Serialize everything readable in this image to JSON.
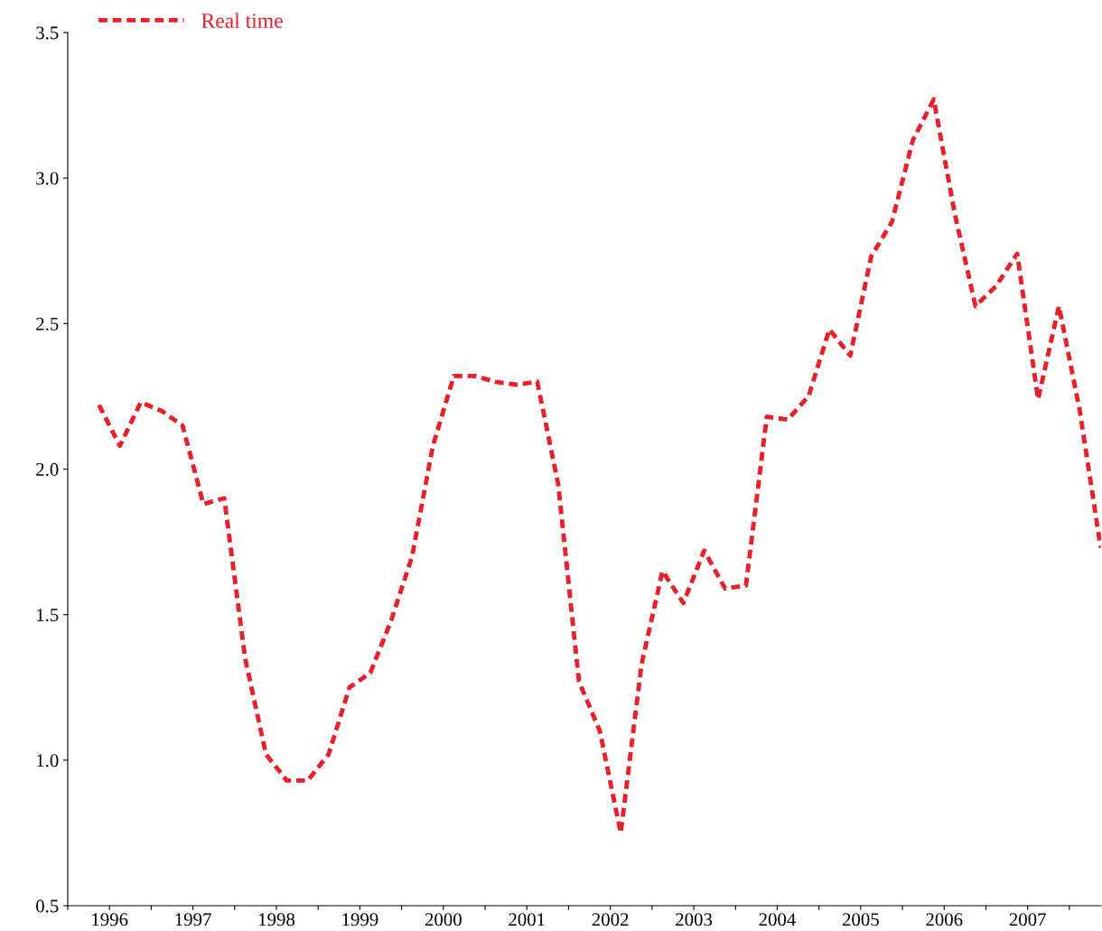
{
  "chart_data": {
    "type": "line",
    "legend": "top left",
    "line_style": "dashed",
    "marker": "none",
    "grid": false,
    "x": [
      1996.375,
      1996.625,
      1996.875,
      1997.125,
      1997.375,
      1997.625,
      1997.875,
      1998.125,
      1998.375,
      1998.625,
      1998.875,
      1999.125,
      1999.375,
      1999.625,
      1999.875,
      2000.125,
      2000.375,
      2000.625,
      2000.875,
      2001.125,
      2001.375,
      2001.625,
      2001.875,
      2002.125,
      2002.375,
      2002.625,
      2002.875,
      2003.125,
      2003.375,
      2003.625,
      2003.875,
      2004.125,
      2004.375,
      2004.625,
      2004.875,
      2005.125,
      2005.375,
      2005.625,
      2005.875,
      2006.125,
      2006.375,
      2006.625,
      2006.875,
      2007.125,
      2007.375,
      2007.625,
      2007.875,
      2008.125,
      2008.375
    ],
    "series": [
      {
        "name": "Real time",
        "color": "#e8202a",
        "values": [
          2.22,
          2.08,
          2.23,
          2.2,
          2.15,
          1.88,
          1.9,
          1.35,
          1.02,
          0.93,
          0.93,
          1.02,
          1.25,
          1.3,
          1.48,
          1.7,
          2.08,
          2.32,
          2.32,
          2.3,
          2.29,
          2.3,
          1.95,
          1.27,
          1.1,
          0.75,
          1.33,
          1.65,
          1.54,
          1.72,
          1.59,
          1.6,
          2.18,
          2.17,
          2.25,
          2.48,
          2.39,
          2.73,
          2.85,
          3.13,
          3.27,
          2.88,
          2.56,
          2.63,
          2.74,
          2.24,
          2.56,
          2.2,
          1.73
        ]
      }
    ],
    "xlim": [
      1996,
      2008.38
    ],
    "xticks": [
      {
        "value": 1996,
        "label": null
      },
      {
        "value": 1996.5,
        "label": "1996"
      },
      {
        "value": 1997,
        "label": null
      },
      {
        "value": 1997.5,
        "label": "1997"
      },
      {
        "value": 1998,
        "label": null
      },
      {
        "value": 1998.5,
        "label": "1998"
      },
      {
        "value": 1999,
        "label": null
      },
      {
        "value": 1999.5,
        "label": "1999"
      },
      {
        "value": 2000,
        "label": null
      },
      {
        "value": 2000.5,
        "label": "2000"
      },
      {
        "value": 2001,
        "label": null
      },
      {
        "value": 2001.5,
        "label": "2001"
      },
      {
        "value": 2002,
        "label": null
      },
      {
        "value": 2002.5,
        "label": "2002"
      },
      {
        "value": 2003,
        "label": null
      },
      {
        "value": 2003.5,
        "label": "2003"
      },
      {
        "value": 2004,
        "label": null
      },
      {
        "value": 2004.5,
        "label": "2004"
      },
      {
        "value": 2005,
        "label": null
      },
      {
        "value": 2005.5,
        "label": "2005"
      },
      {
        "value": 2006,
        "label": null
      },
      {
        "value": 2006.5,
        "label": "2006"
      },
      {
        "value": 2007,
        "label": null
      },
      {
        "value": 2007.5,
        "label": "2007"
      },
      {
        "value": 2008,
        "label": null
      }
    ],
    "ylim": [
      0.5,
      3.5
    ],
    "yticks": [
      {
        "value": 0.5,
        "label": "0.5"
      },
      {
        "value": 1.0,
        "label": "1.0"
      },
      {
        "value": 1.5,
        "label": "1.5"
      },
      {
        "value": 2.0,
        "label": "2.0"
      },
      {
        "value": 2.5,
        "label": "2.5"
      },
      {
        "value": 3.0,
        "label": "3.0"
      },
      {
        "value": 3.5,
        "label": "3.5"
      }
    ]
  }
}
